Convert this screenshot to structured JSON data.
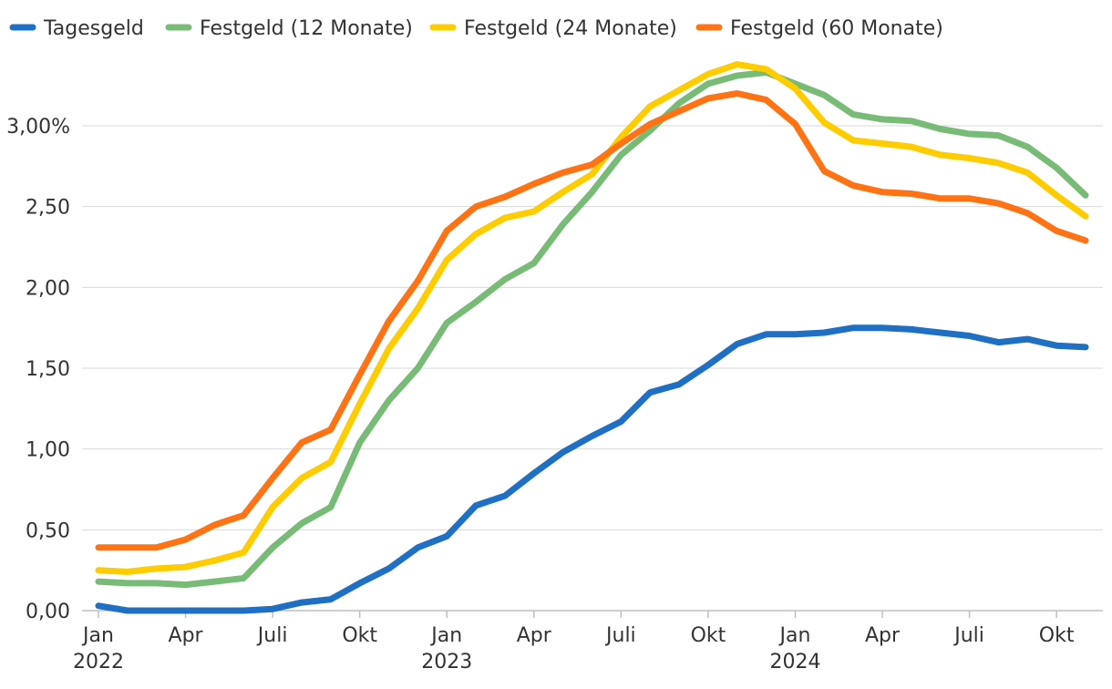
{
  "chart_data": {
    "type": "line",
    "title": "",
    "xlabel": "",
    "ylabel": "",
    "ylim": [
      0,
      3.5
    ],
    "grid": true,
    "legend_position": "top-left",
    "y_ticks": [
      {
        "value": 0,
        "label": "0,00"
      },
      {
        "value": 0.5,
        "label": "0,50"
      },
      {
        "value": 1.0,
        "label": "1,00"
      },
      {
        "value": 1.5,
        "label": "1,50"
      },
      {
        "value": 2.0,
        "label": "2,00"
      },
      {
        "value": 2.5,
        "label": "2,50"
      },
      {
        "value": 3.0,
        "label": "3,00%"
      }
    ],
    "x_ticks": [
      {
        "index": 0,
        "label": "Jan",
        "year": "2022"
      },
      {
        "index": 3,
        "label": "Apr",
        "year": ""
      },
      {
        "index": 6,
        "label": "Juli",
        "year": ""
      },
      {
        "index": 9,
        "label": "Okt",
        "year": ""
      },
      {
        "index": 12,
        "label": "Jan",
        "year": "2023"
      },
      {
        "index": 15,
        "label": "Apr",
        "year": ""
      },
      {
        "index": 18,
        "label": "Juli",
        "year": ""
      },
      {
        "index": 21,
        "label": "Okt",
        "year": ""
      },
      {
        "index": 24,
        "label": "Jan",
        "year": "2024"
      },
      {
        "index": 27,
        "label": "Apr",
        "year": ""
      },
      {
        "index": 30,
        "label": "Juli",
        "year": ""
      },
      {
        "index": 33,
        "label": "Okt",
        "year": ""
      }
    ],
    "x": [
      "2022-01",
      "2022-02",
      "2022-03",
      "2022-04",
      "2022-05",
      "2022-06",
      "2022-07",
      "2022-08",
      "2022-09",
      "2022-10",
      "2022-11",
      "2022-12",
      "2023-01",
      "2023-02",
      "2023-03",
      "2023-04",
      "2023-05",
      "2023-06",
      "2023-07",
      "2023-08",
      "2023-09",
      "2023-10",
      "2023-11",
      "2023-12",
      "2024-01",
      "2024-02",
      "2024-03",
      "2024-04",
      "2024-05",
      "2024-06",
      "2024-07",
      "2024-08",
      "2024-09",
      "2024-10",
      "2024-11"
    ],
    "series": [
      {
        "name": "Tagesgeld",
        "color": "#1f6fc5",
        "values": [
          0.03,
          0.0,
          0.0,
          0.0,
          0.0,
          0.0,
          0.01,
          0.05,
          0.07,
          0.17,
          0.26,
          0.39,
          0.46,
          0.65,
          0.71,
          0.85,
          0.98,
          1.08,
          1.17,
          1.35,
          1.4,
          1.52,
          1.65,
          1.71,
          1.71,
          1.72,
          1.75,
          1.75,
          1.74,
          1.72,
          1.7,
          1.66,
          1.68,
          1.64,
          1.63
        ]
      },
      {
        "name": "Festgeld (12 Monate)",
        "color": "#77bb77",
        "values": [
          0.18,
          0.17,
          0.17,
          0.16,
          0.18,
          0.2,
          0.39,
          0.54,
          0.64,
          1.04,
          1.3,
          1.5,
          1.78,
          1.91,
          2.05,
          2.15,
          2.39,
          2.59,
          2.82,
          2.97,
          3.14,
          3.26,
          3.31,
          3.33,
          3.26,
          3.19,
          3.07,
          3.04,
          3.03,
          2.98,
          2.95,
          2.94,
          2.87,
          2.74,
          2.57
        ]
      },
      {
        "name": "Festgeld (24 Monate)",
        "color": "#ffcc00",
        "values": [
          0.25,
          0.24,
          0.26,
          0.27,
          0.31,
          0.36,
          0.64,
          0.82,
          0.92,
          1.28,
          1.62,
          1.87,
          2.17,
          2.33,
          2.43,
          2.47,
          2.59,
          2.7,
          2.93,
          3.12,
          3.22,
          3.32,
          3.38,
          3.35,
          3.23,
          3.02,
          2.91,
          2.89,
          2.87,
          2.82,
          2.8,
          2.77,
          2.71,
          2.57,
          2.44
        ]
      },
      {
        "name": "Festgeld (60 Monate)",
        "color": "#ff7315",
        "values": [
          0.39,
          0.39,
          0.39,
          0.44,
          0.53,
          0.59,
          0.82,
          1.04,
          1.12,
          1.46,
          1.79,
          2.04,
          2.35,
          2.5,
          2.56,
          2.64,
          2.71,
          2.76,
          2.89,
          3.01,
          3.09,
          3.17,
          3.2,
          3.16,
          3.01,
          2.72,
          2.63,
          2.59,
          2.58,
          2.55,
          2.55,
          2.52,
          2.46,
          2.35,
          2.29
        ]
      }
    ]
  }
}
